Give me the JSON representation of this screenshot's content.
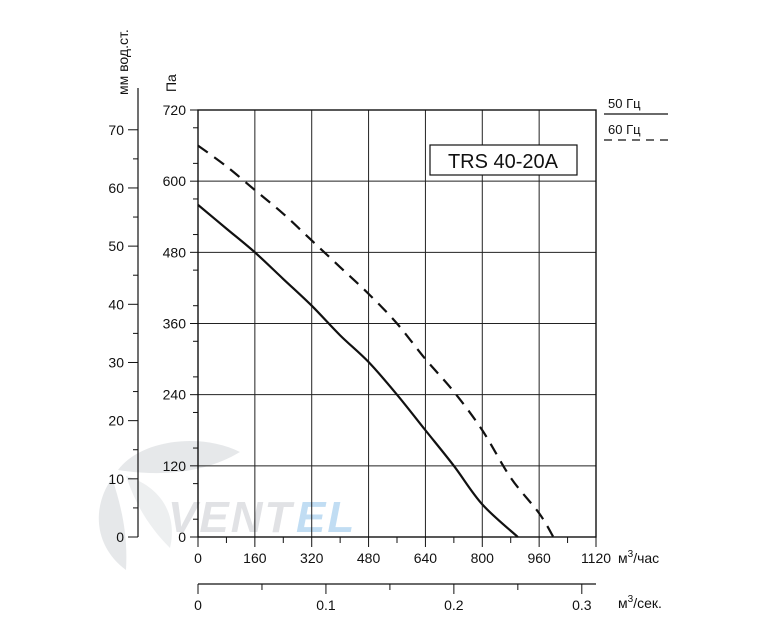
{
  "chart_data": {
    "type": "line",
    "model": "TRS 40-20A",
    "x_axis": {
      "unit": "м³/час",
      "ticks": [
        0,
        160,
        320,
        480,
        640,
        800,
        960,
        1120
      ],
      "range": [
        0,
        1120
      ]
    },
    "x2_axis": {
      "unit": "м³/сек.",
      "ticks": [
        "0",
        "0.1",
        "0.2",
        "0.3"
      ],
      "range": [
        0,
        0.3111
      ]
    },
    "y_axis": {
      "unit": "Па",
      "ticks": [
        0,
        120,
        240,
        360,
        480,
        600,
        720
      ],
      "range": [
        0,
        720
      ]
    },
    "y2_axis": {
      "unit": "мм вод.ст.",
      "ticks": [
        0,
        10,
        20,
        30,
        40,
        50,
        60,
        70
      ],
      "range": [
        0,
        73.4
      ]
    },
    "grid": true,
    "legend_position": "top-right",
    "series": [
      {
        "name": "50 Гц",
        "style": "solid",
        "points": [
          [
            0,
            560
          ],
          [
            80,
            520
          ],
          [
            160,
            480
          ],
          [
            240,
            435
          ],
          [
            320,
            390
          ],
          [
            400,
            340
          ],
          [
            480,
            295
          ],
          [
            560,
            240
          ],
          [
            640,
            180
          ],
          [
            720,
            120
          ],
          [
            800,
            55
          ],
          [
            900,
            0
          ]
        ]
      },
      {
        "name": "60 Гц",
        "style": "dashed",
        "points": [
          [
            0,
            660
          ],
          [
            80,
            625
          ],
          [
            160,
            585
          ],
          [
            240,
            545
          ],
          [
            320,
            500
          ],
          [
            400,
            455
          ],
          [
            480,
            410
          ],
          [
            560,
            360
          ],
          [
            640,
            300
          ],
          [
            720,
            245
          ],
          [
            800,
            180
          ],
          [
            880,
            100
          ],
          [
            960,
            40
          ],
          [
            1000,
            0
          ]
        ]
      }
    ],
    "colors": {
      "lines": "#111111",
      "grid": "#222222",
      "watermark": "#c9ccd0",
      "watermark_accent": "#2f8fd6"
    },
    "watermark": "VENTEL"
  }
}
